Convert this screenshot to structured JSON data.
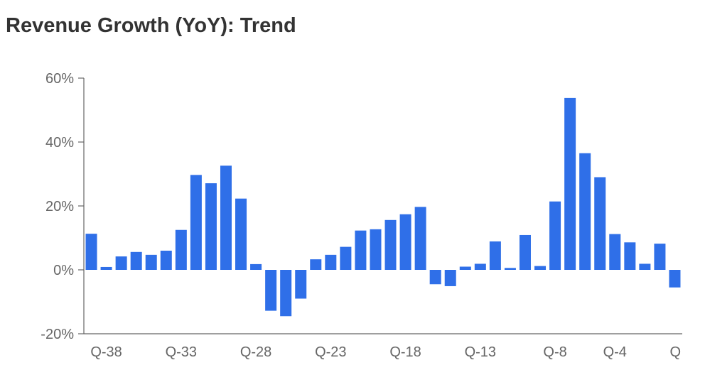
{
  "chart_data": {
    "type": "bar",
    "title": "Revenue Growth (YoY): Trend",
    "xlabel": "",
    "ylabel": "",
    "categories": [
      "Q-39",
      "Q-38",
      "Q-37",
      "Q-36",
      "Q-35",
      "Q-34",
      "Q-33",
      "Q-32",
      "Q-31",
      "Q-30",
      "Q-29",
      "Q-28",
      "Q-27",
      "Q-26",
      "Q-25",
      "Q-24",
      "Q-23",
      "Q-22",
      "Q-21",
      "Q-20",
      "Q-19",
      "Q-18",
      "Q-17",
      "Q-16",
      "Q-15",
      "Q-14",
      "Q-13",
      "Q-12",
      "Q-11",
      "Q-10",
      "Q-9",
      "Q-8",
      "Q-7",
      "Q-6",
      "Q-5",
      "Q-4",
      "Q-3",
      "Q-2",
      "Q-1",
      "Q"
    ],
    "values": [
      11.3,
      0.9,
      4.2,
      5.6,
      4.7,
      6.0,
      12.5,
      29.7,
      27.1,
      32.6,
      22.3,
      1.8,
      -12.8,
      -14.5,
      -9.0,
      3.3,
      4.7,
      7.2,
      12.3,
      12.7,
      15.6,
      17.4,
      19.7,
      -4.5,
      -5.1,
      1.0,
      1.9,
      8.9,
      0.6,
      10.9,
      1.2,
      21.4,
      53.8,
      36.5,
      29.0,
      11.2,
      8.6,
      1.9,
      8.2,
      -5.5
    ],
    "xticks": [
      "Q-38",
      "Q-33",
      "Q-28",
      "Q-23",
      "Q-18",
      "Q-13",
      "Q-8",
      "Q-4",
      "Q"
    ],
    "yticks": [
      "60%",
      "40%",
      "20%",
      "0%",
      "-20%"
    ],
    "ylim": [
      -20,
      60
    ],
    "grid": false,
    "bar_color": "#2f6fe8",
    "axis_color": "#666666"
  }
}
